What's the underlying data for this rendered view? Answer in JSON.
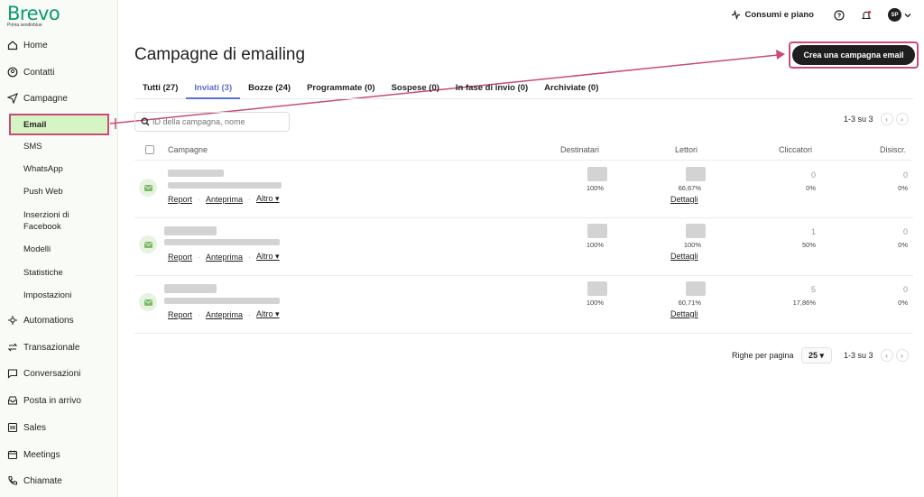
{
  "brand": {
    "name": "Brevo",
    "sub": "Prima sendinblue"
  },
  "sidebar": {
    "items": [
      {
        "label": "Home",
        "icon": "home-icon"
      },
      {
        "label": "Contatti",
        "icon": "contacts-icon"
      },
      {
        "label": "Campagne",
        "icon": "campaign-icon"
      },
      {
        "label": "Automations",
        "icon": "automation-icon"
      },
      {
        "label": "Transazionale",
        "icon": "transactional-icon"
      },
      {
        "label": "Conversazioni",
        "icon": "chat-icon"
      },
      {
        "label": "Posta in arrivo",
        "icon": "inbox-icon"
      },
      {
        "label": "Sales",
        "icon": "sales-icon"
      },
      {
        "label": "Meetings",
        "icon": "calendar-icon"
      },
      {
        "label": "Chiamate",
        "icon": "phone-icon"
      }
    ],
    "sub": [
      "Email",
      "SMS",
      "WhatsApp",
      "Push Web",
      "Inserzioni di",
      "Facebook",
      "Modelli",
      "Statistiche",
      "Impostazioni"
    ]
  },
  "topbar": {
    "usage": "Consumi e piano",
    "avatar": "SP"
  },
  "page": {
    "title": "Campagne di emailing",
    "cta": "Crea una campagna email"
  },
  "tabs": [
    "Tutti (27)",
    "Inviati (3)",
    "Bozze (24)",
    "Programmate (0)",
    "Sospese (0)",
    "In fase di invio (0)",
    "Archiviate (0)"
  ],
  "search": {
    "placeholder": "ID della campagna, nome"
  },
  "pager": {
    "text": "1-3 su 3",
    "prev": "‹",
    "next": "›"
  },
  "table": {
    "headers": [
      "Campagne",
      "Destinatari",
      "Lettori",
      "Cliccatori",
      "Disiscr."
    ],
    "links": [
      "Report",
      "Anteprima",
      "Altro ▾"
    ],
    "rows": [
      {
        "dest": "100%",
        "lettori": "66,67%",
        "details": "Dettagli",
        "click_n": "0",
        "click_p": "0%",
        "unsub_n": "0",
        "unsub_p": "0%"
      },
      {
        "dest": "100%",
        "lettori": "100%",
        "details": "Dettagli",
        "click_n": "1",
        "click_p": "50%",
        "unsub_n": "0",
        "unsub_p": "0%"
      },
      {
        "dest": "100%",
        "lettori": "60,71%",
        "details": "Dettagli",
        "click_n": "5",
        "click_p": "17,86%",
        "unsub_n": "0",
        "unsub_p": "0%"
      }
    ]
  },
  "footer": {
    "rpp_label": "Righe per pagina",
    "rpp_value": "25 ▾",
    "pager": "1-3 su 3"
  }
}
